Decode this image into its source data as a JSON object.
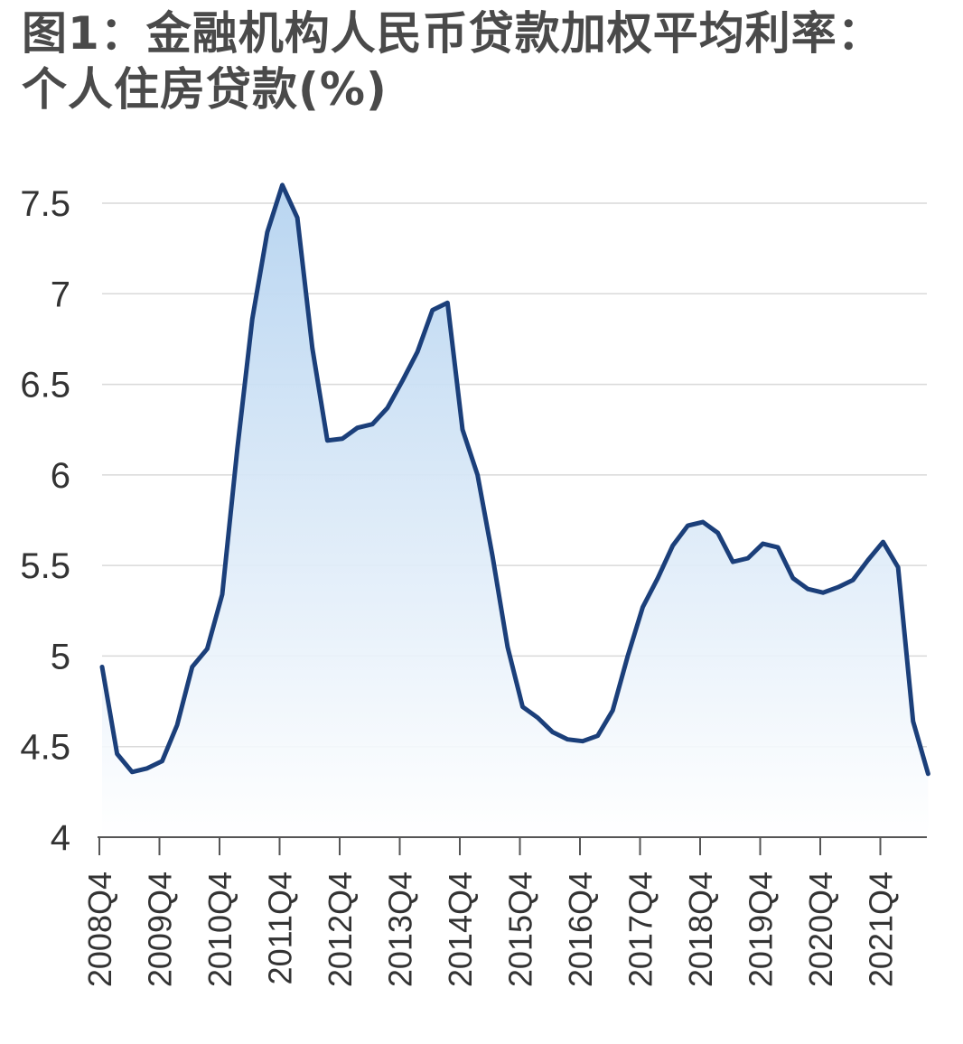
{
  "title_line1": "图1：金融机构人民币贷款加权平均利率：",
  "title_line2": "个人住房贷款(%)",
  "colors": {
    "line": "#1b3f7a",
    "area_top": "#b5d3f0",
    "area_bottom": "#ffffff",
    "grid": "#d9d9d9",
    "axis": "#555555",
    "title": "#4a4a4a"
  },
  "chart_data": {
    "type": "area",
    "title": "图1：金融机构人民币贷款加权平均利率：个人住房贷款(%)",
    "xlabel": "",
    "ylabel": "",
    "ylim": [
      4,
      7.5
    ],
    "yticks": [
      "7.5",
      "7",
      "6.5",
      "6",
      "5.5",
      "5",
      "4.5",
      "4"
    ],
    "ytick_values": [
      7.5,
      7,
      6.5,
      6,
      5.5,
      5,
      4.5,
      4
    ],
    "xtick_labels": [
      "2008Q4",
      "2009Q4",
      "2010Q4",
      "2011Q4",
      "2012Q4",
      "2013Q4",
      "2014Q4",
      "2015Q4",
      "2016Q4",
      "2017Q4",
      "2018Q4",
      "2019Q4",
      "2020Q4",
      "2021Q4"
    ],
    "grid": true,
    "legend": "none",
    "series": [
      {
        "values": [
          4.94,
          4.46,
          4.36,
          4.38,
          4.42,
          4.62,
          4.94,
          5.04,
          5.34,
          6.14,
          6.86,
          7.34,
          7.6,
          7.42,
          6.7,
          6.19,
          6.2,
          6.26,
          6.28,
          6.37,
          6.52,
          6.68,
          6.91,
          6.95,
          6.25,
          6.0,
          5.55,
          5.05,
          4.72,
          4.66,
          4.58,
          4.54,
          4.53,
          4.56,
          4.7,
          5.0,
          5.27,
          5.43,
          5.61,
          5.72,
          5.74,
          5.68,
          5.52,
          5.54,
          5.62,
          5.6,
          5.43,
          5.37,
          5.35,
          5.38,
          5.42,
          5.53,
          5.63,
          5.49,
          4.64,
          4.35
        ]
      }
    ]
  }
}
